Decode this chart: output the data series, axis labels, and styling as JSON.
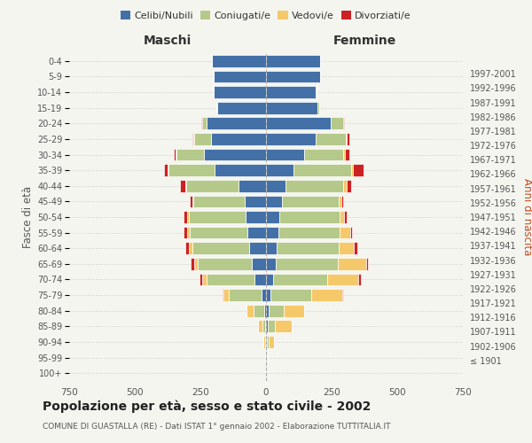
{
  "age_groups": [
    "100+",
    "95-99",
    "90-94",
    "85-89",
    "80-84",
    "75-79",
    "70-74",
    "65-69",
    "60-64",
    "55-59",
    "50-54",
    "45-49",
    "40-44",
    "35-39",
    "30-34",
    "25-29",
    "20-24",
    "15-19",
    "10-14",
    "5-9",
    "0-4"
  ],
  "birth_years": [
    "≤ 1901",
    "1902-1906",
    "1907-1911",
    "1912-1916",
    "1917-1921",
    "1922-1926",
    "1927-1931",
    "1932-1936",
    "1937-1941",
    "1942-1946",
    "1947-1951",
    "1952-1956",
    "1957-1961",
    "1962-1966",
    "1967-1971",
    "1972-1976",
    "1977-1981",
    "1982-1986",
    "1987-1991",
    "1992-1996",
    "1997-2001"
  ],
  "colors": {
    "celibi": "#4470a8",
    "coniugati": "#b5c98a",
    "vedovi": "#f5c96a",
    "divorziati": "#cc2222"
  },
  "maschi": {
    "celibi": [
      0,
      1,
      2,
      5,
      8,
      18,
      45,
      55,
      65,
      72,
      78,
      82,
      105,
      195,
      235,
      210,
      225,
      185,
      200,
      200,
      205
    ],
    "coniugati": [
      0,
      1,
      3,
      10,
      38,
      125,
      180,
      205,
      215,
      220,
      215,
      195,
      200,
      175,
      105,
      65,
      18,
      4,
      2,
      1,
      1
    ],
    "vedovi": [
      0,
      1,
      5,
      15,
      28,
      18,
      18,
      13,
      13,
      9,
      9,
      4,
      4,
      4,
      4,
      2,
      1,
      0,
      0,
      0,
      0
    ],
    "divorziati": [
      0,
      0,
      0,
      0,
      0,
      5,
      10,
      13,
      13,
      13,
      13,
      9,
      18,
      13,
      9,
      4,
      2,
      0,
      0,
      0,
      0
    ]
  },
  "femmine": {
    "celibi": [
      0,
      2,
      4,
      7,
      9,
      18,
      28,
      38,
      42,
      47,
      52,
      62,
      75,
      105,
      145,
      190,
      245,
      195,
      190,
      205,
      205
    ],
    "coniugati": [
      0,
      1,
      5,
      28,
      58,
      155,
      205,
      235,
      235,
      235,
      228,
      215,
      218,
      218,
      150,
      115,
      48,
      9,
      2,
      1,
      1
    ],
    "vedovi": [
      0,
      5,
      20,
      62,
      78,
      118,
      118,
      108,
      58,
      38,
      18,
      9,
      13,
      9,
      4,
      2,
      1,
      0,
      0,
      0,
      0
    ],
    "divorziati": [
      0,
      0,
      0,
      0,
      0,
      4,
      9,
      9,
      13,
      9,
      9,
      9,
      18,
      38,
      18,
      9,
      4,
      0,
      0,
      0,
      0
    ]
  },
  "xlim": 750,
  "title": "Popolazione per età, sesso e stato civile - 2002",
  "subtitle": "COMUNE DI GUASTALLA (RE) - Dati ISTAT 1° gennaio 2002 - Elaborazione TUTTITALIA.IT",
  "ylabel_left": "Fasce di età",
  "ylabel_right": "Anni di nascita",
  "xlabel_maschi": "Maschi",
  "xlabel_femmine": "Femmine",
  "bg_color": "#f5f5f0",
  "grid_color": "#cccccc",
  "bar_height": 0.78
}
